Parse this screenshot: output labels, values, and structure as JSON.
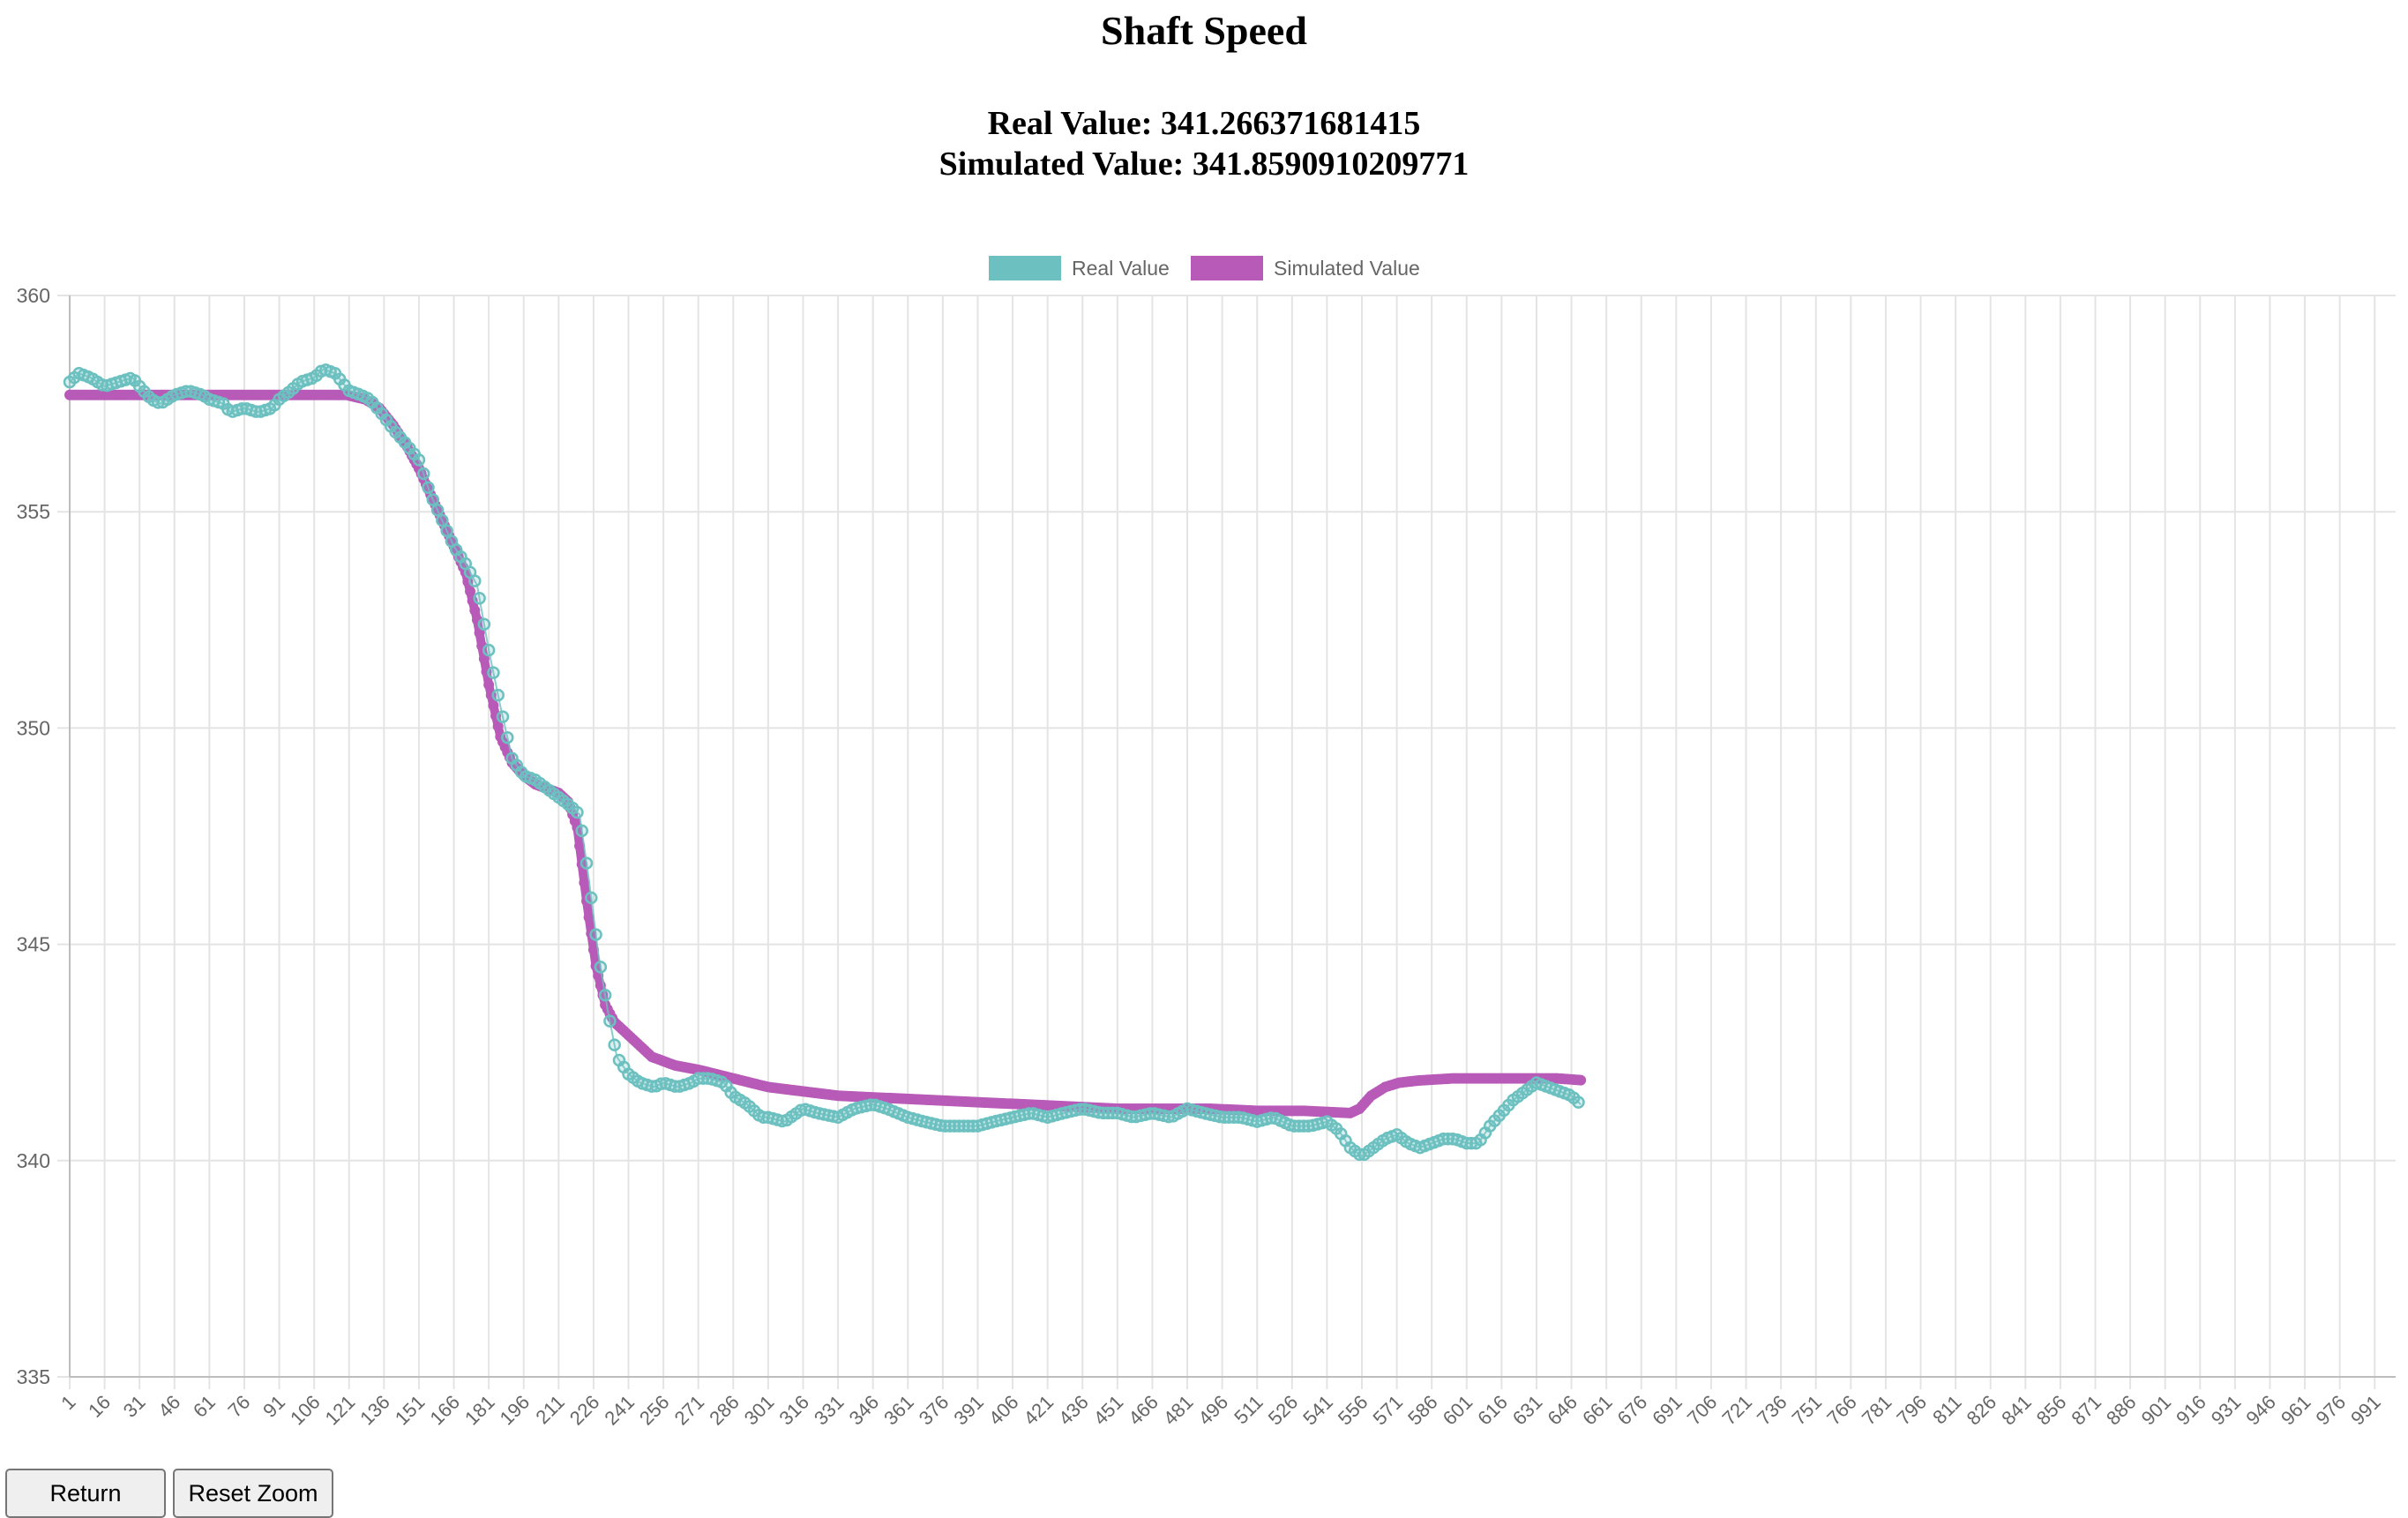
{
  "page": {
    "title": "Shaft Speed",
    "real_value_text": "Real Value: 341.266371681415",
    "simulated_value_text": "Simulated Value: 341.8590910209771"
  },
  "buttons": {
    "return_label": "Return",
    "reset_zoom_label": "Reset Zoom"
  },
  "colors": {
    "real": "#6cc0c0",
    "simulated": "#b85ab8",
    "grid": "#e4e4e4",
    "tick": "#666666"
  },
  "chart_data": {
    "type": "line",
    "title": "",
    "xlabel": "",
    "ylabel": "",
    "x_range": [
      1,
      1000
    ],
    "x_tick_step": 15,
    "ylim": [
      335,
      360
    ],
    "y_ticks": [
      335,
      340,
      345,
      350,
      355,
      360
    ],
    "grid": true,
    "legend": "top-center",
    "series": [
      {
        "name": "Real Value",
        "style": "points",
        "points": [
          [
            1,
            358.0
          ],
          [
            5,
            358.2
          ],
          [
            10,
            358.1
          ],
          [
            16,
            357.9
          ],
          [
            22,
            358.0
          ],
          [
            28,
            358.1
          ],
          [
            31,
            357.9
          ],
          [
            36,
            357.6
          ],
          [
            40,
            357.5
          ],
          [
            46,
            357.7
          ],
          [
            52,
            357.8
          ],
          [
            58,
            357.7
          ],
          [
            61,
            357.6
          ],
          [
            67,
            357.5
          ],
          [
            70,
            357.3
          ],
          [
            76,
            357.4
          ],
          [
            82,
            357.3
          ],
          [
            88,
            357.4
          ],
          [
            91,
            357.6
          ],
          [
            96,
            357.8
          ],
          [
            100,
            358.0
          ],
          [
            106,
            358.1
          ],
          [
            110,
            358.3
          ],
          [
            115,
            358.2
          ],
          [
            121,
            357.8
          ],
          [
            126,
            357.7
          ],
          [
            130,
            357.6
          ],
          [
            136,
            357.2
          ],
          [
            140,
            356.9
          ],
          [
            145,
            356.6
          ],
          [
            151,
            356.2
          ],
          [
            156,
            355.4
          ],
          [
            161,
            354.8
          ],
          [
            166,
            354.2
          ],
          [
            171,
            353.8
          ],
          [
            176,
            353.3
          ],
          [
            181,
            351.8
          ],
          [
            186,
            350.5
          ],
          [
            191,
            349.3
          ],
          [
            196,
            348.9
          ],
          [
            201,
            348.8
          ],
          [
            206,
            348.6
          ],
          [
            211,
            348.4
          ],
          [
            216,
            348.2
          ],
          [
            220,
            348.0
          ],
          [
            224,
            346.5
          ],
          [
            228,
            344.8
          ],
          [
            232,
            343.5
          ],
          [
            236,
            342.4
          ],
          [
            241,
            342.0
          ],
          [
            246,
            341.8
          ],
          [
            252,
            341.7
          ],
          [
            256,
            341.8
          ],
          [
            262,
            341.7
          ],
          [
            268,
            341.8
          ],
          [
            271,
            341.9
          ],
          [
            276,
            341.9
          ],
          [
            282,
            341.8
          ],
          [
            286,
            341.5
          ],
          [
            292,
            341.3
          ],
          [
            298,
            341.0
          ],
          [
            301,
            341.0
          ],
          [
            308,
            340.9
          ],
          [
            316,
            341.2
          ],
          [
            322,
            341.1
          ],
          [
            331,
            341.0
          ],
          [
            338,
            341.2
          ],
          [
            346,
            341.3
          ],
          [
            352,
            341.2
          ],
          [
            361,
            341.0
          ],
          [
            368,
            340.9
          ],
          [
            376,
            340.8
          ],
          [
            383,
            340.8
          ],
          [
            391,
            340.8
          ],
          [
            398,
            340.9
          ],
          [
            406,
            341.0
          ],
          [
            414,
            341.1
          ],
          [
            421,
            341.0
          ],
          [
            428,
            341.1
          ],
          [
            436,
            341.2
          ],
          [
            444,
            341.1
          ],
          [
            451,
            341.1
          ],
          [
            458,
            341.0
          ],
          [
            466,
            341.1
          ],
          [
            474,
            341.0
          ],
          [
            481,
            341.2
          ],
          [
            488,
            341.1
          ],
          [
            496,
            341.0
          ],
          [
            504,
            341.0
          ],
          [
            511,
            340.9
          ],
          [
            518,
            341.0
          ],
          [
            526,
            340.8
          ],
          [
            534,
            340.8
          ],
          [
            541,
            340.9
          ],
          [
            546,
            340.7
          ],
          [
            551,
            340.3
          ],
          [
            556,
            340.1
          ],
          [
            561,
            340.3
          ],
          [
            566,
            340.5
          ],
          [
            571,
            340.6
          ],
          [
            576,
            340.4
          ],
          [
            581,
            340.3
          ],
          [
            586,
            340.4
          ],
          [
            591,
            340.5
          ],
          [
            596,
            340.5
          ],
          [
            601,
            340.4
          ],
          [
            606,
            340.4
          ],
          [
            611,
            340.8
          ],
          [
            616,
            341.1
          ],
          [
            621,
            341.4
          ],
          [
            626,
            341.6
          ],
          [
            631,
            341.8
          ],
          [
            636,
            341.7
          ],
          [
            641,
            341.6
          ],
          [
            646,
            341.5
          ],
          [
            650,
            341.3
          ]
        ]
      },
      {
        "name": "Simulated Value",
        "style": "line",
        "points": [
          [
            1,
            357.7
          ],
          [
            20,
            357.7
          ],
          [
            60,
            357.7
          ],
          [
            100,
            357.7
          ],
          [
            120,
            357.7
          ],
          [
            128,
            357.6
          ],
          [
            134,
            357.4
          ],
          [
            140,
            357.0
          ],
          [
            146,
            356.5
          ],
          [
            151,
            356.0
          ],
          [
            156,
            355.4
          ],
          [
            161,
            354.8
          ],
          [
            166,
            354.2
          ],
          [
            171,
            353.6
          ],
          [
            176,
            352.5
          ],
          [
            181,
            351.0
          ],
          [
            186,
            349.8
          ],
          [
            191,
            349.2
          ],
          [
            196,
            348.9
          ],
          [
            201,
            348.7
          ],
          [
            206,
            348.6
          ],
          [
            211,
            348.5
          ],
          [
            215,
            348.3
          ],
          [
            219,
            347.7
          ],
          [
            223,
            346.0
          ],
          [
            227,
            344.5
          ],
          [
            231,
            343.6
          ],
          [
            235,
            343.2
          ],
          [
            241,
            342.9
          ],
          [
            251,
            342.4
          ],
          [
            261,
            342.2
          ],
          [
            271,
            342.1
          ],
          [
            286,
            341.9
          ],
          [
            301,
            341.7
          ],
          [
            316,
            341.6
          ],
          [
            331,
            341.5
          ],
          [
            351,
            341.45
          ],
          [
            371,
            341.4
          ],
          [
            391,
            341.35
          ],
          [
            411,
            341.3
          ],
          [
            431,
            341.25
          ],
          [
            451,
            341.2
          ],
          [
            471,
            341.2
          ],
          [
            491,
            341.2
          ],
          [
            511,
            341.15
          ],
          [
            531,
            341.15
          ],
          [
            551,
            341.1
          ],
          [
            555,
            341.2
          ],
          [
            560,
            341.5
          ],
          [
            566,
            341.7
          ],
          [
            572,
            341.8
          ],
          [
            580,
            341.85
          ],
          [
            595,
            341.9
          ],
          [
            610,
            341.9
          ],
          [
            625,
            341.9
          ],
          [
            640,
            341.9
          ],
          [
            650,
            341.86
          ]
        ]
      }
    ]
  }
}
